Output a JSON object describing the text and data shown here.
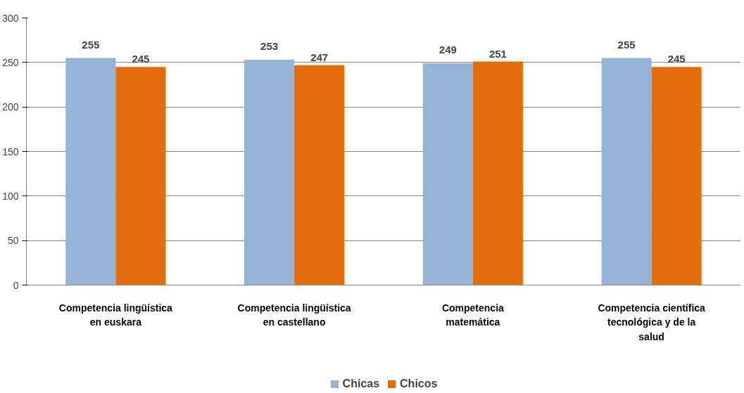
{
  "chart_data": {
    "type": "bar",
    "categories": [
      "Competencia lingüística\nen euskara",
      "Competencia lingüística\nen castellano",
      "Competencia\nmatemática",
      "Competencia científica\ntecnológica y de la\nsalud"
    ],
    "series": [
      {
        "name": "Chicas",
        "color": "#95b3d7",
        "values": [
          255,
          253,
          249,
          255
        ]
      },
      {
        "name": "Chicos",
        "color": "#e46c0a",
        "values": [
          245,
          247,
          251,
          245
        ]
      }
    ],
    "ylim": [
      0,
      300
    ],
    "yticks": [
      0,
      50,
      100,
      150,
      200,
      250,
      300
    ],
    "grid": "y",
    "legend": "bottom",
    "data_labels": true
  }
}
